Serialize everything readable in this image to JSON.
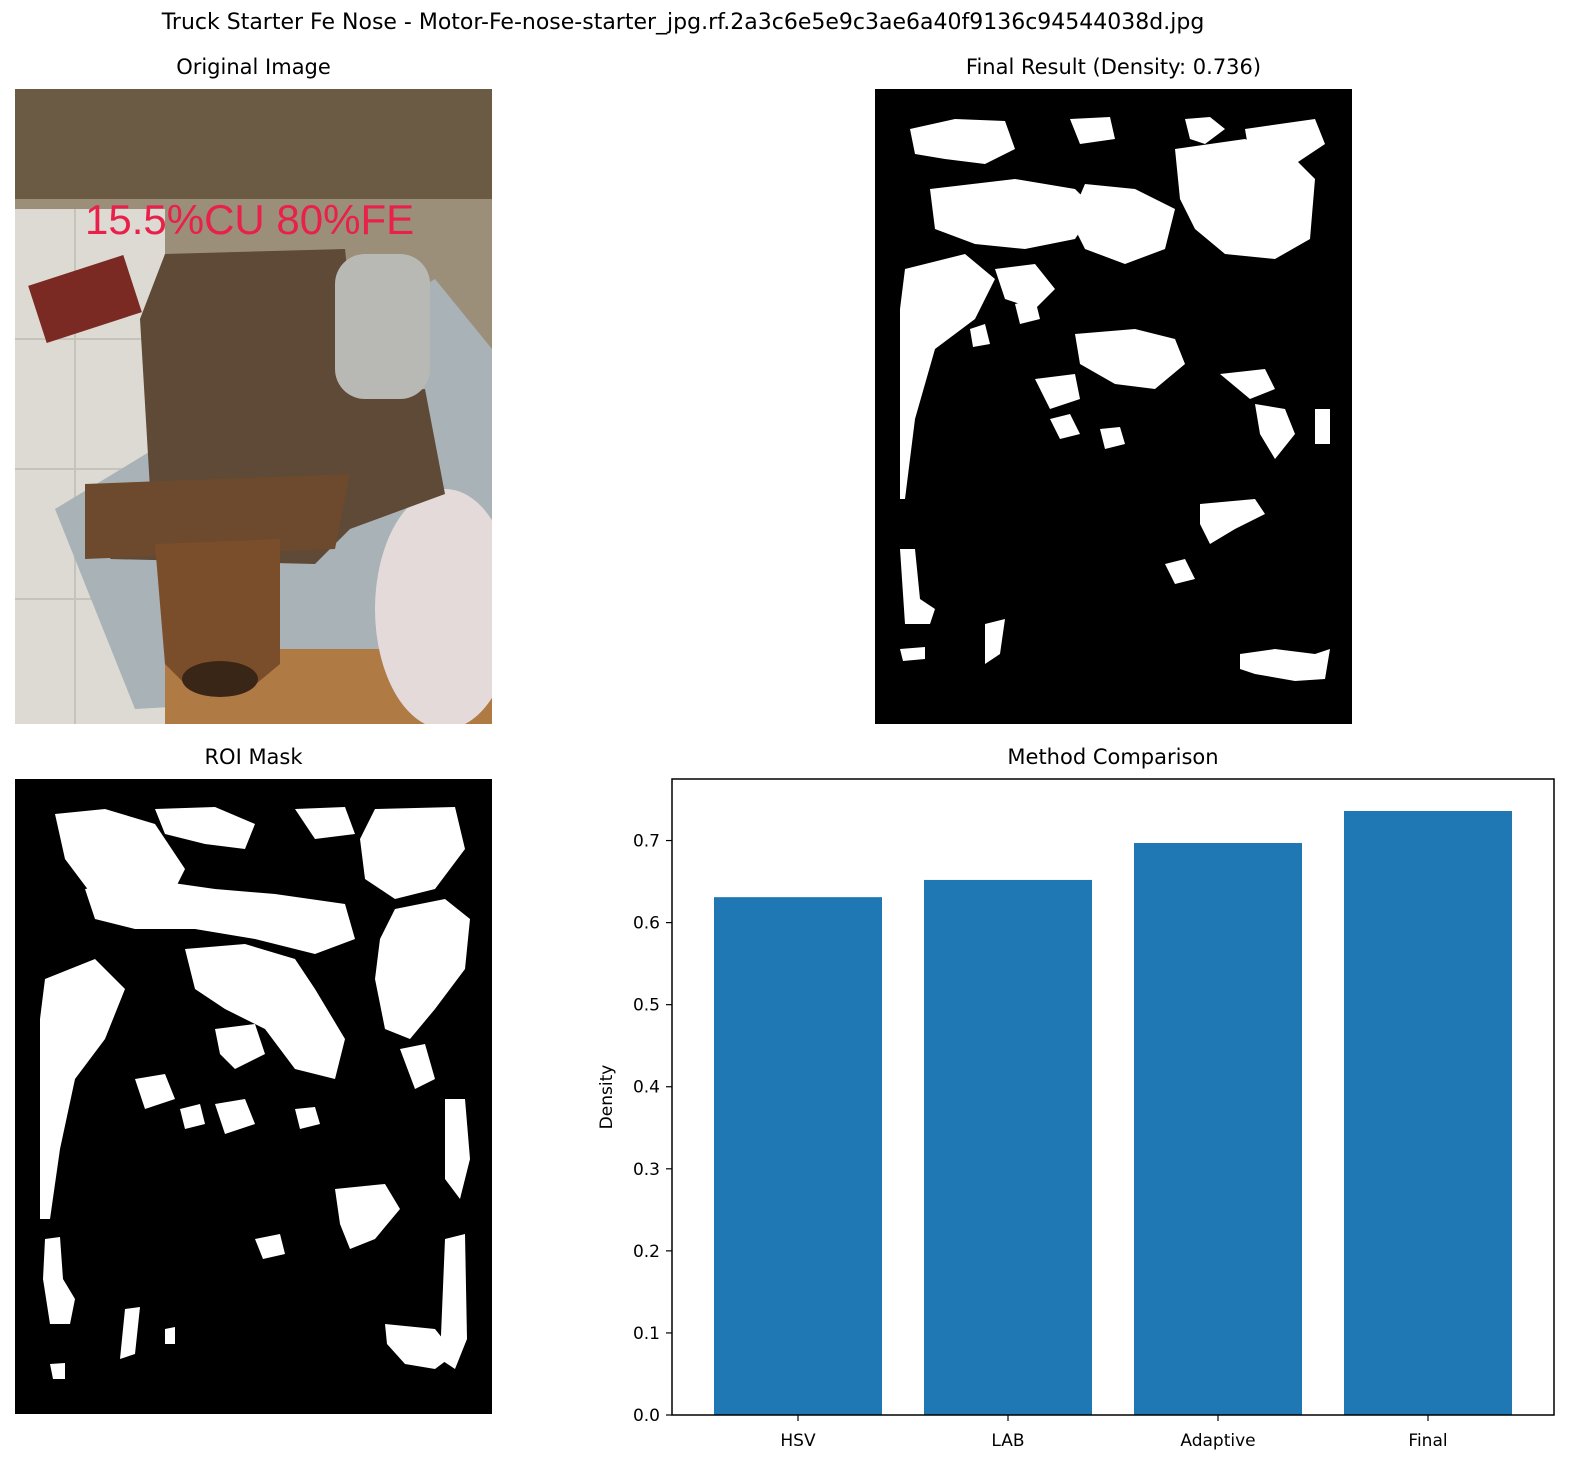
{
  "figure": {
    "suptitle": "Truck Starter Fe Nose - Motor-Fe-nose-starter_jpg.rf.2a3c6e5e9c3ae6a40f9136c94544038d.jpg"
  },
  "panels": {
    "original": {
      "title": "Original Image",
      "overlay_text": "15.5%CU 80%FE"
    },
    "final": {
      "title": "Final Result (Density: 0.736)"
    },
    "roi": {
      "title": "ROI Mask"
    },
    "comparison": {
      "title": "Method Comparison"
    }
  },
  "colors": {
    "bar": "#1f77b4",
    "overlay_text": "#e8204a",
    "mask_bg": "#000000",
    "mask_fg": "#ffffff"
  },
  "chart_data": {
    "type": "bar",
    "title": "Method Comparison",
    "categories": [
      "HSV",
      "LAB",
      "Adaptive",
      "Final"
    ],
    "values": [
      0.631,
      0.652,
      0.697,
      0.736
    ],
    "xlabel": "",
    "ylabel": "Density",
    "ylim": [
      0,
      0.775
    ],
    "yticks": [
      "0.0",
      "0.1",
      "0.2",
      "0.3",
      "0.4",
      "0.5",
      "0.6",
      "0.7"
    ],
    "grid": false,
    "legend": "none"
  }
}
